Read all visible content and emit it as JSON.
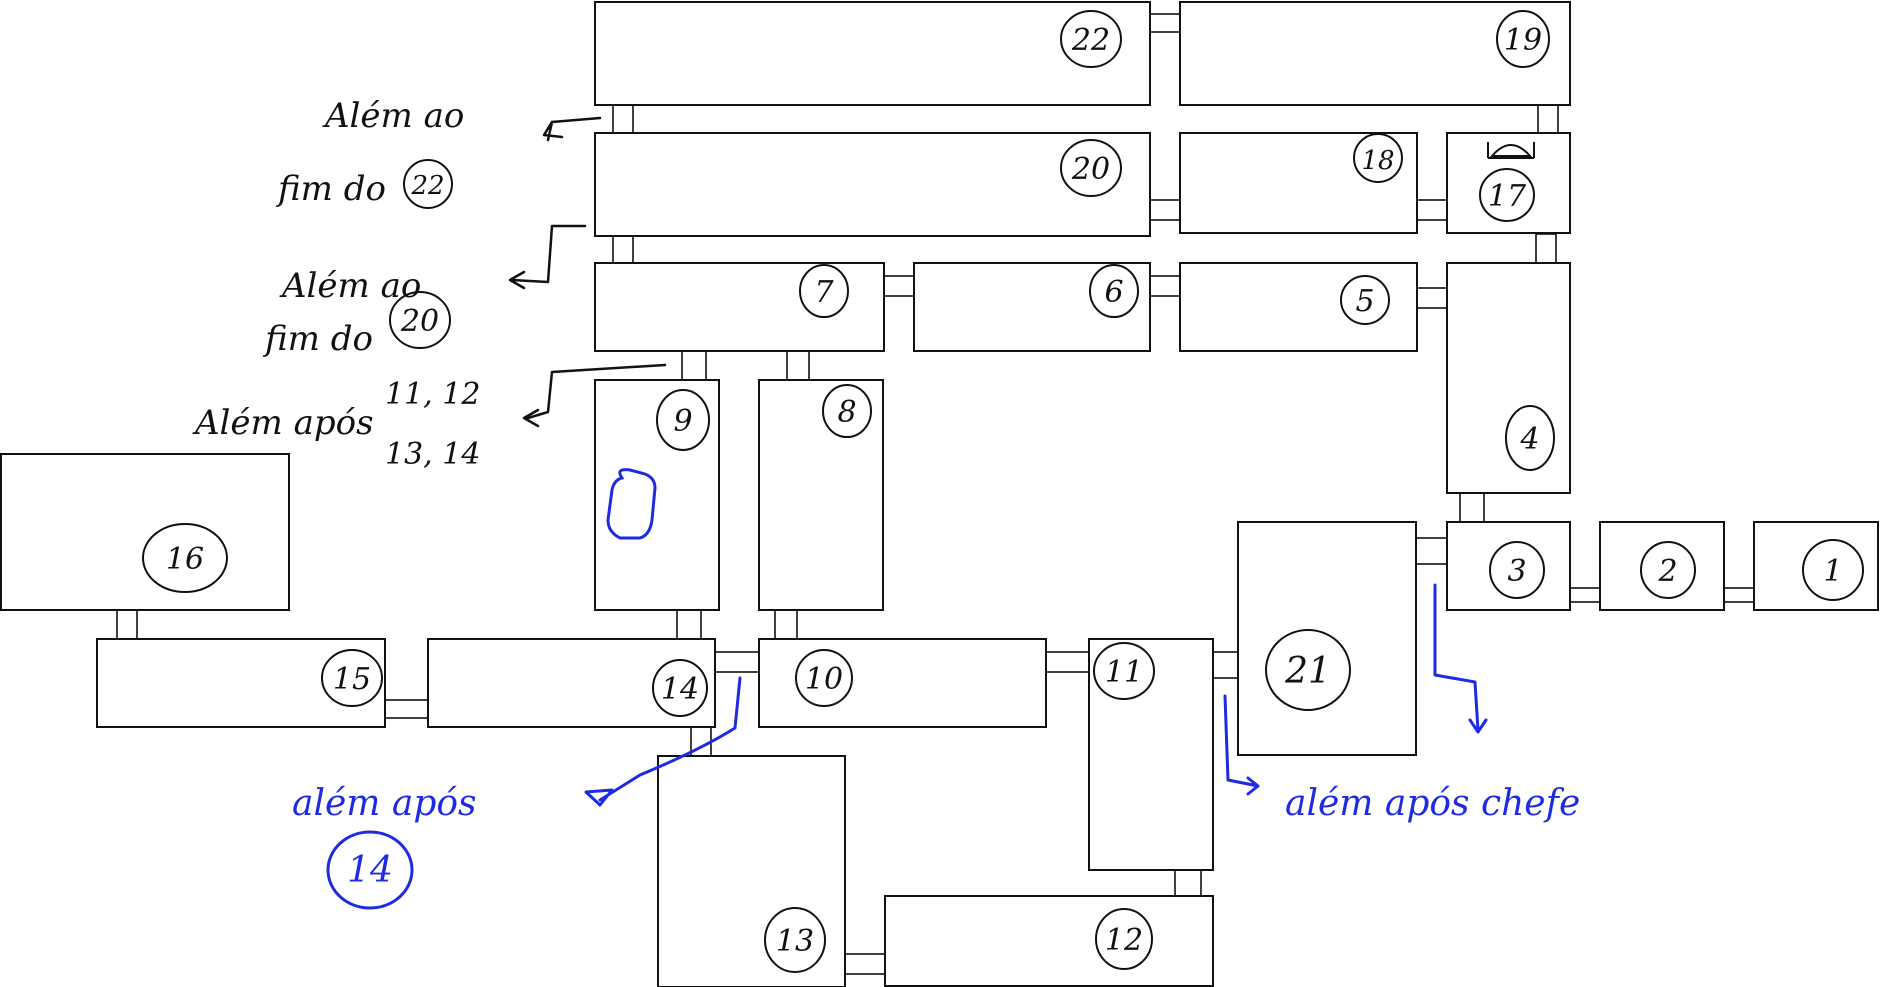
{
  "rooms": {
    "r1": "1",
    "r2": "2",
    "r3": "3",
    "r4": "4",
    "r5": "5",
    "r6": "6",
    "r7": "7",
    "r8": "8",
    "r9": "9",
    "r10": "10",
    "r11": "11",
    "r12": "12",
    "r13": "13",
    "r14": "14",
    "r15": "15",
    "r16": "16",
    "r17": "17",
    "r18": "18",
    "r19": "19",
    "r20": "20",
    "r21": "21",
    "r22": "22"
  },
  "notes": {
    "note1_line1": "Além ao",
    "note1_line2": "fim do",
    "note1_ref": "22",
    "note2_line1": "Além ao",
    "note2_line2": "fim do",
    "note2_ref": "20",
    "note3_line1": "Além após",
    "note3_nums1": "11, 12",
    "note3_nums2": "13, 14",
    "note4_line1": "além após",
    "note4_ref": "14",
    "note5": "além após chefe"
  },
  "colors": {
    "ink": "#111111",
    "annotation_blue": "#1f2be0"
  }
}
